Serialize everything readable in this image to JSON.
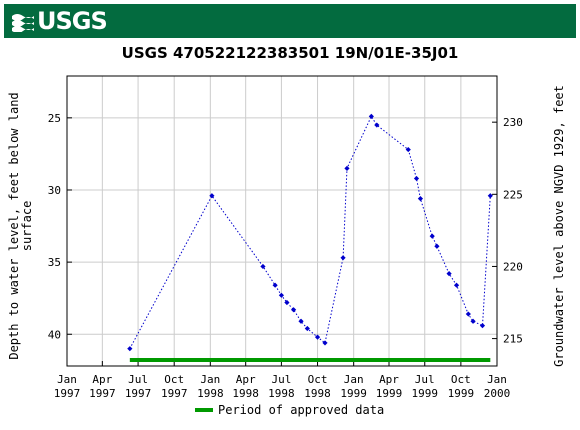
{
  "header": {
    "agency": "USGS",
    "logo_icon": "usgs-wave-icon",
    "brand_color": "#036b3f"
  },
  "chart_data": {
    "type": "scatter",
    "title": "USGS 470522122383501 19N/01E-35J01",
    "ylabel_left": "Depth to water level, feet below land surface",
    "ylabel_left_lines": [
      "Depth to water level, feet below land",
      "surface"
    ],
    "ylabel_right": "Groundwater level above NGVD 1929, feet",
    "ylim_left": [
      42.2,
      22.1
    ],
    "yticks_left": [
      25,
      30,
      35,
      40
    ],
    "yticks_right": [
      215,
      220,
      225,
      230
    ],
    "datum_offset": 255.3,
    "x_range": [
      "1997-01-01",
      "2000-01-01"
    ],
    "x_ticks": [
      {
        "date": "1997-01-01",
        "month": "Jan",
        "year": "1997"
      },
      {
        "date": "1997-04-01",
        "month": "Apr",
        "year": "1997"
      },
      {
        "date": "1997-07-01",
        "month": "Jul",
        "year": "1997"
      },
      {
        "date": "1997-10-01",
        "month": "Oct",
        "year": "1997"
      },
      {
        "date": "1998-01-01",
        "month": "Jan",
        "year": "1998"
      },
      {
        "date": "1998-04-01",
        "month": "Apr",
        "year": "1998"
      },
      {
        "date": "1998-07-01",
        "month": "Jul",
        "year": "1998"
      },
      {
        "date": "1998-10-01",
        "month": "Oct",
        "year": "1998"
      },
      {
        "date": "1999-01-01",
        "month": "Jan",
        "year": "1999"
      },
      {
        "date": "1999-04-01",
        "month": "Apr",
        "year": "1999"
      },
      {
        "date": "1999-07-01",
        "month": "Jul",
        "year": "1999"
      },
      {
        "date": "1999-10-01",
        "month": "Oct",
        "year": "1999"
      },
      {
        "date": "2000-01-01",
        "month": "Jan",
        "year": "2000"
      }
    ],
    "grid": true,
    "series": [
      {
        "color": "#0000cc",
        "line_style": "dotted",
        "points": [
          {
            "x": "1997-06-10",
            "y": 41.0
          },
          {
            "x": "1998-01-05",
            "y": 30.4
          },
          {
            "x": "1998-05-15",
            "y": 35.3
          },
          {
            "x": "1998-06-15",
            "y": 36.6
          },
          {
            "x": "1998-07-01",
            "y": 37.3
          },
          {
            "x": "1998-07-15",
            "y": 37.8
          },
          {
            "x": "1998-08-01",
            "y": 38.3
          },
          {
            "x": "1998-08-20",
            "y": 39.1
          },
          {
            "x": "1998-09-05",
            "y": 39.6
          },
          {
            "x": "1998-10-01",
            "y": 40.2
          },
          {
            "x": "1998-10-20",
            "y": 40.6
          },
          {
            "x": "1998-12-05",
            "y": 34.7
          },
          {
            "x": "1998-12-15",
            "y": 28.5
          },
          {
            "x": "1999-02-15",
            "y": 24.9
          },
          {
            "x": "1999-03-01",
            "y": 25.5
          },
          {
            "x": "1999-05-20",
            "y": 27.2
          },
          {
            "x": "1999-06-10",
            "y": 29.2
          },
          {
            "x": "1999-06-20",
            "y": 30.6
          },
          {
            "x": "1999-07-20",
            "y": 33.2
          },
          {
            "x": "1999-08-01",
            "y": 33.9
          },
          {
            "x": "1999-09-01",
            "y": 35.8
          },
          {
            "x": "1999-09-20",
            "y": 36.6
          },
          {
            "x": "1999-10-20",
            "y": 38.6
          },
          {
            "x": "1999-11-01",
            "y": 39.1
          },
          {
            "x": "1999-11-25",
            "y": 39.4
          },
          {
            "x": "1999-12-15",
            "y": 30.4
          }
        ]
      }
    ],
    "approved_period": {
      "start": "1997-06-10",
      "end": "1999-12-15",
      "color": "#009900"
    },
    "legend": {
      "label": "Period of approved data",
      "placement": "bottom-center"
    }
  }
}
